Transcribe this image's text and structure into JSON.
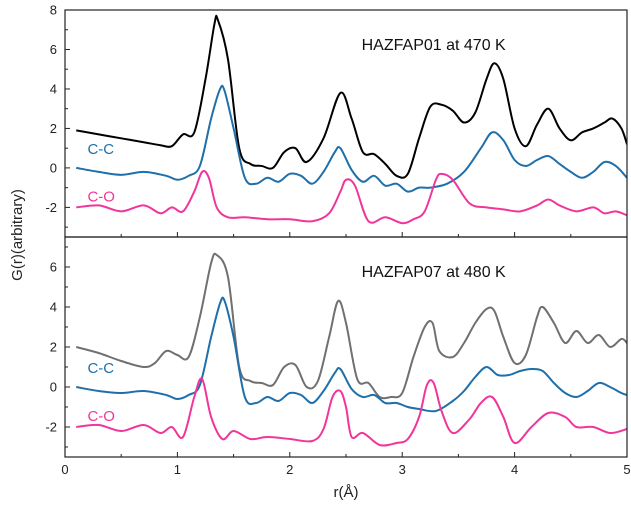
{
  "chart_data": {
    "type": "line",
    "xlabel": "r(Å)",
    "ylabel": "G(r)(arbitrary)",
    "xlim": [
      0,
      5
    ],
    "x_ticks": [
      0,
      1,
      2,
      3,
      4,
      5
    ],
    "colors": {
      "total_top": "#000000",
      "total_bottom": "#707070",
      "cc": "#1f6faa",
      "co": "#f0359b"
    },
    "panels": [
      {
        "title": "HAZFAP01 at 470 K",
        "ylim": [
          -3.5,
          8
        ],
        "y_ticks": [
          -2,
          0,
          2,
          4,
          6,
          8
        ],
        "series": [
          {
            "key": "total",
            "colorKey": "total_top",
            "x": [
              0.1,
              0.3,
              0.5,
              0.7,
              0.85,
              0.95,
              1.05,
              1.15,
              1.25,
              1.33,
              1.36,
              1.45,
              1.55,
              1.65,
              1.75,
              1.85,
              1.95,
              2.05,
              2.15,
              2.3,
              2.45,
              2.55,
              2.65,
              2.75,
              2.85,
              2.95,
              3.05,
              3.15,
              3.25,
              3.35,
              3.45,
              3.55,
              3.65,
              3.75,
              3.82,
              3.9,
              4.0,
              4.1,
              4.2,
              4.3,
              4.4,
              4.5,
              4.6,
              4.7,
              4.8,
              4.87,
              4.95,
              5.0
            ],
            "y": [
              1.9,
              1.7,
              1.5,
              1.3,
              1.15,
              1.1,
              1.7,
              1.8,
              4.5,
              7.3,
              7.5,
              5.5,
              1.0,
              0.2,
              0.1,
              0.0,
              0.8,
              1.0,
              0.3,
              1.5,
              3.8,
              2.5,
              0.8,
              0.7,
              0.2,
              -0.4,
              -0.3,
              1.5,
              3.1,
              3.2,
              2.9,
              2.3,
              2.8,
              4.5,
              5.3,
              4.5,
              2.0,
              1.1,
              2.2,
              3.0,
              2.0,
              1.4,
              1.8,
              2.0,
              2.3,
              2.5,
              2.0,
              1.2
            ]
          },
          {
            "key": "cc",
            "label": "C-C",
            "colorKey": "cc",
            "x": [
              0.1,
              0.3,
              0.5,
              0.7,
              0.9,
              1.0,
              1.1,
              1.2,
              1.3,
              1.38,
              1.42,
              1.5,
              1.6,
              1.7,
              1.8,
              1.9,
              2.0,
              2.1,
              2.2,
              2.3,
              2.4,
              2.45,
              2.55,
              2.65,
              2.75,
              2.85,
              2.95,
              3.05,
              3.15,
              3.25,
              3.4,
              3.55,
              3.7,
              3.8,
              3.9,
              4.0,
              4.1,
              4.2,
              4.3,
              4.4,
              4.5,
              4.6,
              4.7,
              4.8,
              4.9,
              5.0
            ],
            "y": [
              0.0,
              -0.2,
              -0.35,
              -0.2,
              -0.4,
              -0.6,
              -0.4,
              0.1,
              2.5,
              4.0,
              3.9,
              2.0,
              -0.5,
              -0.8,
              -0.5,
              -0.7,
              -0.3,
              -0.4,
              -0.8,
              -0.2,
              0.8,
              1.0,
              -0.1,
              -0.7,
              -0.4,
              -0.9,
              -0.8,
              -1.2,
              -1.0,
              -1.0,
              -0.8,
              -0.2,
              1.0,
              1.8,
              1.4,
              0.4,
              0.1,
              0.4,
              0.6,
              0.2,
              -0.2,
              -0.5,
              -0.2,
              0.3,
              0.1,
              -0.5
            ]
          },
          {
            "key": "co",
            "label": "C-O",
            "colorKey": "co",
            "x": [
              0.1,
              0.3,
              0.5,
              0.7,
              0.85,
              0.95,
              1.05,
              1.15,
              1.22,
              1.28,
              1.35,
              1.45,
              1.6,
              1.8,
              2.0,
              2.2,
              2.35,
              2.45,
              2.5,
              2.58,
              2.7,
              2.85,
              3.0,
              3.1,
              3.2,
              3.3,
              3.35,
              3.45,
              3.6,
              3.75,
              3.9,
              4.05,
              4.2,
              4.3,
              4.4,
              4.55,
              4.7,
              4.8,
              4.9,
              5.0
            ],
            "y": [
              -2.0,
              -1.9,
              -2.2,
              -1.9,
              -2.3,
              -2.0,
              -2.2,
              -1.2,
              -0.2,
              -0.5,
              -2.0,
              -2.5,
              -2.5,
              -2.6,
              -2.6,
              -2.7,
              -2.3,
              -1.2,
              -0.6,
              -0.9,
              -2.7,
              -2.5,
              -2.8,
              -2.6,
              -2.2,
              -0.6,
              -0.3,
              -0.6,
              -1.8,
              -2.0,
              -2.1,
              -2.2,
              -1.9,
              -1.6,
              -1.9,
              -2.2,
              -2.0,
              -2.3,
              -2.2,
              -2.4
            ]
          }
        ]
      },
      {
        "title": "HAZFAP07 at 480 K",
        "ylim": [
          -3.5,
          7.5
        ],
        "y_ticks": [
          -2,
          0,
          2,
          4,
          6
        ],
        "series": [
          {
            "key": "total",
            "colorKey": "total_bottom",
            "x": [
              0.1,
              0.3,
              0.5,
              0.7,
              0.8,
              0.9,
              1.0,
              1.1,
              1.2,
              1.3,
              1.35,
              1.45,
              1.55,
              1.65,
              1.75,
              1.85,
              1.95,
              2.05,
              2.15,
              2.25,
              2.35,
              2.43,
              2.5,
              2.6,
              2.7,
              2.8,
              2.9,
              3.0,
              3.1,
              3.2,
              3.27,
              3.33,
              3.45,
              3.55,
              3.65,
              3.75,
              3.82,
              3.9,
              4.0,
              4.1,
              4.2,
              4.25,
              4.35,
              4.45,
              4.55,
              4.65,
              4.75,
              4.85,
              4.95,
              5.0
            ],
            "y": [
              2.0,
              1.7,
              1.3,
              1.0,
              1.2,
              1.8,
              1.6,
              1.5,
              3.5,
              6.2,
              6.6,
              5.5,
              1.0,
              0.3,
              0.2,
              0.1,
              1.0,
              1.1,
              0.0,
              0.3,
              2.5,
              4.3,
              3.2,
              0.4,
              0.2,
              -0.5,
              -0.5,
              -0.3,
              1.5,
              3.0,
              3.2,
              1.8,
              1.5,
              2.2,
              3.2,
              3.9,
              3.8,
              2.5,
              1.2,
              1.6,
              3.5,
              4.0,
              3.2,
              2.2,
              2.8,
              2.2,
              2.6,
              2.0,
              2.4,
              2.2
            ]
          },
          {
            "key": "cc",
            "label": "C-C",
            "colorKey": "cc",
            "x": [
              0.1,
              0.3,
              0.5,
              0.7,
              0.9,
              1.0,
              1.1,
              1.2,
              1.3,
              1.38,
              1.42,
              1.5,
              1.6,
              1.7,
              1.8,
              1.9,
              2.0,
              2.1,
              2.2,
              2.3,
              2.4,
              2.45,
              2.55,
              2.65,
              2.75,
              2.85,
              2.95,
              3.05,
              3.15,
              3.3,
              3.45,
              3.55,
              3.65,
              3.75,
              3.85,
              3.95,
              4.05,
              4.15,
              4.25,
              4.35,
              4.45,
              4.55,
              4.65,
              4.75,
              4.85,
              4.95,
              5.0
            ],
            "y": [
              0.0,
              -0.2,
              -0.3,
              -0.2,
              -0.4,
              -0.6,
              -0.4,
              0.1,
              2.5,
              4.2,
              4.3,
              2.5,
              -0.5,
              -0.8,
              -0.5,
              -0.7,
              -0.3,
              -0.4,
              -0.8,
              -0.2,
              0.7,
              0.9,
              -0.1,
              -0.5,
              -0.4,
              -0.8,
              -0.8,
              -1.0,
              -1.1,
              -1.2,
              -0.7,
              -0.2,
              0.5,
              1.0,
              0.6,
              0.6,
              0.8,
              0.9,
              0.8,
              0.2,
              -0.3,
              -0.5,
              -0.2,
              0.2,
              0.0,
              -0.3,
              -0.4
            ]
          },
          {
            "key": "co",
            "label": "C-O",
            "colorKey": "co",
            "x": [
              0.1,
              0.3,
              0.5,
              0.7,
              0.85,
              0.95,
              1.05,
              1.15,
              1.22,
              1.3,
              1.4,
              1.5,
              1.65,
              1.8,
              2.0,
              2.2,
              2.3,
              2.38,
              2.45,
              2.5,
              2.55,
              2.65,
              2.8,
              2.95,
              3.05,
              3.15,
              3.22,
              3.28,
              3.35,
              3.45,
              3.6,
              3.7,
              3.8,
              3.9,
              4.0,
              4.15,
              4.3,
              4.45,
              4.55,
              4.7,
              4.85,
              5.0
            ],
            "y": [
              -2.0,
              -1.9,
              -2.2,
              -1.9,
              -2.3,
              -2.0,
              -2.5,
              -0.5,
              0.4,
              -1.5,
              -2.6,
              -2.2,
              -2.6,
              -2.5,
              -2.6,
              -2.7,
              -2.1,
              -0.5,
              -0.2,
              -1.0,
              -2.5,
              -2.3,
              -2.9,
              -2.8,
              -2.6,
              -1.5,
              0.1,
              0.2,
              -1.2,
              -2.3,
              -1.6,
              -0.8,
              -0.5,
              -1.5,
              -2.8,
              -2.0,
              -1.3,
              -1.5,
              -2.0,
              -2.0,
              -2.3,
              -2.1
            ]
          }
        ]
      }
    ]
  }
}
